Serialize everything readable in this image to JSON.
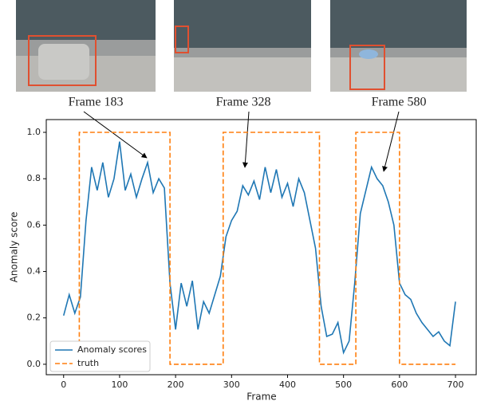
{
  "chart_data": {
    "type": "line",
    "xlabel": "Frame",
    "ylabel": "Anomaly score",
    "xlim": [
      -31,
      737
    ],
    "ylim": [
      -0.045,
      1.055
    ],
    "xticks": [
      0,
      100,
      200,
      300,
      400,
      500,
      600,
      700
    ],
    "yticks": [
      {
        "value": 0,
        "label": "0.0"
      },
      0.2,
      0.4,
      0.6,
      0.8,
      {
        "value": 1,
        "label": "1.0"
      }
    ],
    "grid": false,
    "legend": "lower left",
    "annotations": [
      "Frame 183",
      "Frame 328",
      "Frame 580"
    ],
    "series": [
      {
        "name": "Anomaly scores",
        "color": "#1f77b4",
        "dash": false,
        "x": [
          0,
          10,
          20,
          30,
          40,
          50,
          60,
          70,
          80,
          90,
          100,
          110,
          120,
          130,
          140,
          150,
          160,
          170,
          180,
          190,
          200,
          210,
          220,
          230,
          240,
          250,
          260,
          270,
          280,
          290,
          300,
          310,
          320,
          330,
          340,
          350,
          360,
          370,
          380,
          390,
          400,
          410,
          420,
          430,
          440,
          450,
          460,
          470,
          480,
          490,
          500,
          510,
          520,
          530,
          540,
          550,
          560,
          570,
          580,
          590,
          600,
          610,
          620,
          630,
          640,
          650,
          660,
          670,
          680,
          690,
          700
        ],
        "values": [
          0.21,
          0.3,
          0.22,
          0.29,
          0.62,
          0.85,
          0.75,
          0.87,
          0.72,
          0.8,
          0.96,
          0.75,
          0.82,
          0.72,
          0.8,
          0.87,
          0.74,
          0.8,
          0.76,
          0.35,
          0.15,
          0.35,
          0.25,
          0.36,
          0.15,
          0.27,
          0.22,
          0.3,
          0.38,
          0.55,
          0.62,
          0.66,
          0.77,
          0.73,
          0.79,
          0.71,
          0.85,
          0.74,
          0.84,
          0.72,
          0.78,
          0.68,
          0.8,
          0.74,
          0.62,
          0.5,
          0.25,
          0.12,
          0.13,
          0.18,
          0.05,
          0.1,
          0.35,
          0.65,
          0.75,
          0.85,
          0.8,
          0.77,
          0.7,
          0.6,
          0.35,
          0.3,
          0.28,
          0.22,
          0.18,
          0.15,
          0.12,
          0.14,
          0.1,
          0.08,
          0.27
        ]
      },
      {
        "name": "truth",
        "color": "#ff7f0e",
        "dash": true,
        "x": [
          0,
          28,
          28,
          190,
          190,
          285,
          285,
          457,
          457,
          522,
          522,
          600,
          600,
          700
        ],
        "values": [
          0,
          0,
          1,
          1,
          0,
          0,
          1,
          1,
          0,
          0,
          1,
          1,
          0,
          0
        ]
      }
    ]
  }
}
